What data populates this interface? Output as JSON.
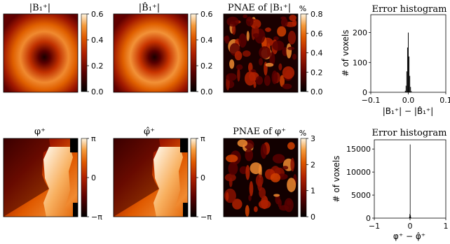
{
  "figure": {
    "colormap": "gist_heat",
    "colormap_stops": [
      "#000000",
      "#5a0000",
      "#b02000",
      "#e05a00",
      "#f59a3a",
      "#fff5e0"
    ]
  },
  "chart_data": [
    {
      "type": "heatmap",
      "title": "|B₁⁺|",
      "colorbar": {
        "range": [
          0,
          0.6
        ],
        "ticks": [
          "0.0",
          "0.2",
          "0.4",
          "0.6"
        ]
      }
    },
    {
      "type": "heatmap",
      "title": "|B̂₁⁺|",
      "colorbar": {
        "range": [
          0,
          0.6
        ],
        "ticks": [
          "0.0",
          "0.2",
          "0.4",
          "0.6"
        ]
      }
    },
    {
      "type": "heatmap",
      "title": "PNAE of |B₁⁺|",
      "unit": "%",
      "colorbar": {
        "range": [
          0,
          0.8
        ],
        "ticks": [
          "0.0",
          "0.2",
          "0.4",
          "0.6",
          "0.8"
        ]
      }
    },
    {
      "type": "bar",
      "title": "Error histogram",
      "xlabel": "|B₁⁺| − |B̂₁⁺|",
      "ylabel": "# of voxels",
      "xlim": [
        -0.1,
        0.1
      ],
      "ylim": [
        0,
        260
      ],
      "xticks": [
        "−0.1",
        "0.0",
        "0.1"
      ],
      "yticks": [
        "0",
        "100",
        "200"
      ],
      "x": [
        -0.008,
        -0.006,
        -0.004,
        -0.002,
        0.0,
        0.002,
        0.004,
        0.006,
        0.008
      ],
      "values": [
        5,
        22,
        70,
        150,
        200,
        120,
        55,
        18,
        4
      ]
    },
    {
      "type": "heatmap",
      "title": "φ⁺",
      "colorbar": {
        "range": [
          "−π",
          "π"
        ],
        "ticks": [
          "−π",
          "0",
          "π"
        ]
      }
    },
    {
      "type": "heatmap",
      "title": "φ̂⁺",
      "colorbar": {
        "range": [
          "−π",
          "π"
        ],
        "ticks": [
          "−π",
          "0",
          "π"
        ]
      }
    },
    {
      "type": "heatmap",
      "title": "PNAE of φ⁺",
      "unit": "%",
      "colorbar": {
        "range": [
          0,
          3
        ],
        "ticks": [
          "0",
          "1",
          "2",
          "3"
        ]
      }
    },
    {
      "type": "bar",
      "title": "Error histogram",
      "xlabel": "φ⁺ − φ̂⁺",
      "ylabel": "# of voxels",
      "xlim": [
        -1,
        1
      ],
      "ylim": [
        0,
        17000
      ],
      "xticks": [
        "−1",
        "0",
        "1"
      ],
      "yticks": [
        "0",
        "5000",
        "10000",
        "15000"
      ],
      "x": [
        -0.02,
        -0.01,
        0.0,
        0.01,
        0.02
      ],
      "values": [
        300,
        900,
        16000,
        600,
        200
      ]
    }
  ]
}
